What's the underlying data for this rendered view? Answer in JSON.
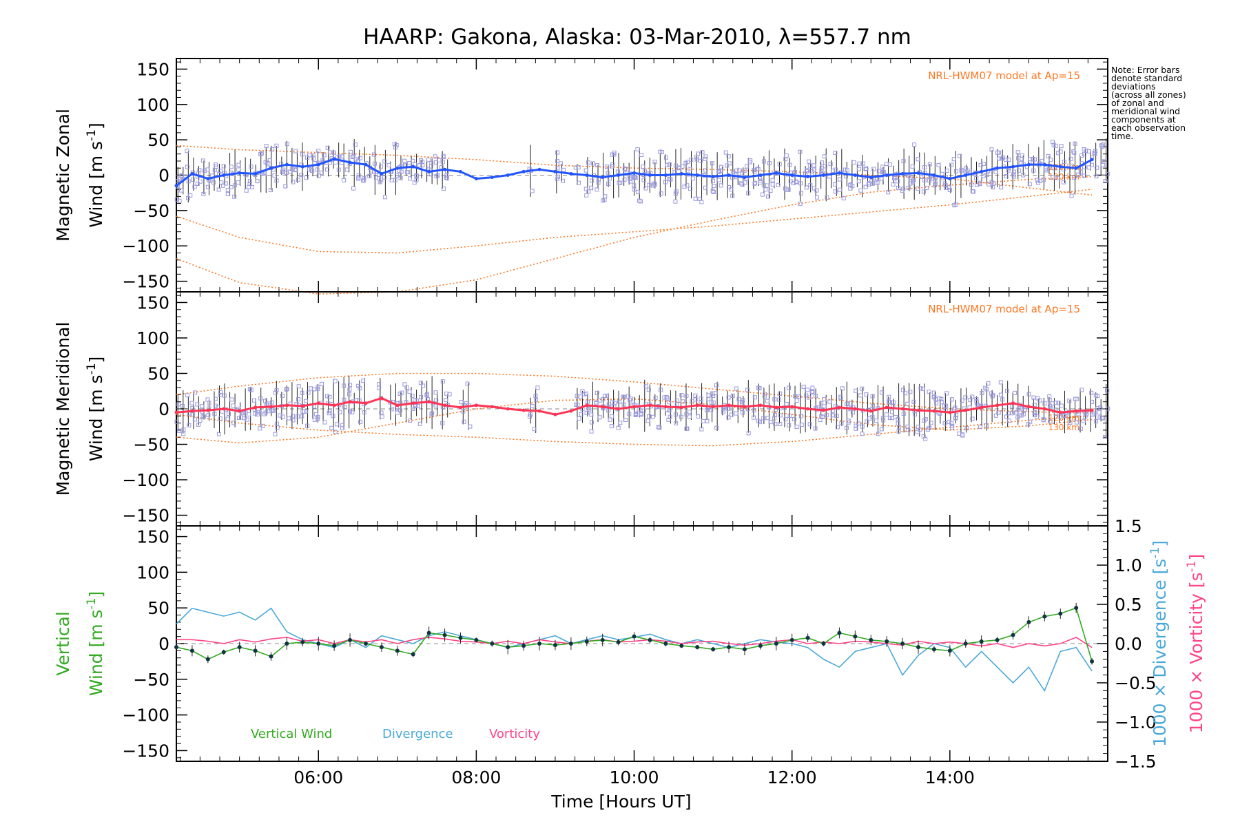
{
  "figure": {
    "title": "HAARP: Gakona,  Alaska: 03-Mar-2010, λ=557.7 nm",
    "note_lines": [
      "Note: Error bars",
      "denote standard",
      "deviations",
      "(across all zones)",
      "of zonal and",
      "meridional wind",
      "components at",
      "each observation",
      "time."
    ],
    "colors": {
      "zonal": "#2255ff",
      "meridional": "#ff3355",
      "vertical": "#33aa22",
      "divergence": "#4aa8d8",
      "vorticity": "#ff4488",
      "model": "#ff7722",
      "zone_marks": "#9999dd",
      "error_bars": "#000000"
    }
  },
  "chart_data": [
    {
      "type": "line",
      "title": "",
      "ylabel": "Magnetic Zonal Wind [m s-1]",
      "ylabel_lines": [
        "Magnetic Zonal",
        "Wind [m s",
        "-1",
        "]"
      ],
      "xlabel": "",
      "xlim": [
        4.2,
        16.0
      ],
      "ylim": [
        -165,
        165
      ],
      "yticks": [
        -150,
        -100,
        -50,
        0,
        50,
        100,
        150
      ],
      "ytick_labels": [
        "−150",
        "−100",
        "−50",
        "0",
        "50",
        "100",
        "150"
      ],
      "annotation": "NRL-HWM07 model at Ap=15",
      "model_labels": [
        "120 km",
        "130 km"
      ],
      "series": [
        {
          "x": [
            4.2,
            4.4,
            4.6,
            4.8,
            5.0,
            5.2,
            5.4,
            5.6,
            5.8,
            6.0,
            6.2,
            6.4,
            6.6,
            6.8,
            7.0,
            7.2,
            7.4,
            7.6,
            7.8,
            8.0,
            8.2,
            8.4,
            8.6,
            8.8,
            9.0,
            9.2,
            9.4,
            9.6,
            9.8,
            10.0,
            10.2,
            10.4,
            10.6,
            10.8,
            11.0,
            11.2,
            11.4,
            11.6,
            11.8,
            12.0,
            12.2,
            12.4,
            12.6,
            12.8,
            13.0,
            13.2,
            13.4,
            13.6,
            13.8,
            14.0,
            14.2,
            14.4,
            14.6,
            14.8,
            15.0,
            15.2,
            15.4,
            15.6,
            15.8
          ],
          "y": [
            -15,
            2,
            -5,
            0,
            3,
            2,
            10,
            15,
            12,
            15,
            23,
            18,
            15,
            2,
            10,
            12,
            5,
            8,
            5,
            -5,
            -3,
            0,
            5,
            8,
            5,
            2,
            0,
            -3,
            0,
            3,
            0,
            0,
            2,
            0,
            -2,
            0,
            -3,
            0,
            3,
            0,
            -2,
            0,
            3,
            0,
            -3,
            0,
            2,
            3,
            0,
            -5,
            0,
            5,
            10,
            12,
            15,
            15,
            12,
            10,
            22
          ]
        }
      ],
      "model_curves": [
        {
          "x": [
            4.2,
            5.0,
            6.0,
            7.0,
            8.0,
            9.0,
            10.0,
            11.0,
            12.0,
            13.0,
            14.0,
            15.0,
            15.8
          ],
          "y": [
            42,
            36,
            32,
            28,
            22,
            14,
            10,
            8,
            5,
            0,
            -5,
            -18,
            -28
          ]
        },
        {
          "x": [
            4.2,
            5.0,
            6.0,
            7.0,
            8.0,
            9.0,
            10.0,
            11.0,
            12.0,
            13.0,
            14.0,
            15.0,
            15.8
          ],
          "y": [
            -58,
            -88,
            -108,
            -110,
            -100,
            -88,
            -80,
            -72,
            -62,
            -52,
            -42,
            -30,
            -20
          ]
        },
        {
          "x": [
            4.2,
            5.0,
            6.0,
            7.0,
            8.0,
            9.0,
            10.0,
            11.0,
            12.0,
            13.0,
            14.0,
            15.0,
            15.8
          ],
          "y": [
            -118,
            -152,
            -168,
            -165,
            -148,
            -118,
            -88,
            -64,
            -42,
            -24,
            -14,
            -6,
            -2
          ]
        }
      ]
    },
    {
      "type": "line",
      "title": "",
      "ylabel": "Magnetic Meridional Wind [m s-1]",
      "ylabel_lines": [
        "Magnetic Meridional",
        "Wind [m s",
        "-1",
        "]"
      ],
      "xlabel": "",
      "xlim": [
        4.2,
        16.0
      ],
      "ylim": [
        -165,
        165
      ],
      "yticks": [
        -150,
        -100,
        -50,
        0,
        50,
        100,
        150
      ],
      "ytick_labels": [
        "−150",
        "−100",
        "−50",
        "0",
        "50",
        "100",
        "150"
      ],
      "annotation": "NRL-HWM07 model at Ap=15",
      "model_labels": [
        "120 km",
        "130 km"
      ],
      "series": [
        {
          "x": [
            4.2,
            4.4,
            4.6,
            4.8,
            5.0,
            5.2,
            5.4,
            5.6,
            5.8,
            6.0,
            6.2,
            6.4,
            6.6,
            6.8,
            7.0,
            7.2,
            7.4,
            7.6,
            7.8,
            8.0,
            8.2,
            8.4,
            8.6,
            8.8,
            9.0,
            9.2,
            9.4,
            9.6,
            9.8,
            10.0,
            10.2,
            10.4,
            10.6,
            10.8,
            11.0,
            11.2,
            11.4,
            11.6,
            11.8,
            12.0,
            12.2,
            12.4,
            12.6,
            12.8,
            13.0,
            13.2,
            13.4,
            13.6,
            13.8,
            14.0,
            14.2,
            14.4,
            14.6,
            14.8,
            15.0,
            15.2,
            15.4,
            15.6,
            15.8
          ],
          "y": [
            -5,
            -3,
            -2,
            0,
            -3,
            2,
            3,
            5,
            4,
            8,
            5,
            10,
            8,
            15,
            5,
            8,
            10,
            5,
            2,
            5,
            3,
            0,
            -2,
            -3,
            -8,
            -3,
            5,
            3,
            0,
            3,
            5,
            3,
            2,
            5,
            3,
            5,
            3,
            5,
            2,
            3,
            0,
            -2,
            2,
            0,
            -3,
            2,
            0,
            -2,
            -3,
            -5,
            -2,
            2,
            5,
            8,
            3,
            0,
            -5,
            -3,
            -2
          ]
        }
      ],
      "model_curves": [
        {
          "x": [
            4.2,
            5.0,
            6.0,
            7.0,
            8.0,
            9.0,
            10.0,
            11.0,
            12.0,
            13.0,
            14.0,
            15.0,
            15.8
          ],
          "y": [
            20,
            32,
            44,
            50,
            50,
            46,
            38,
            28,
            18,
            8,
            0,
            -4,
            -6
          ]
        },
        {
          "x": [
            4.2,
            5.0,
            6.0,
            7.0,
            8.0,
            9.0,
            10.0,
            11.0,
            12.0,
            13.0,
            14.0,
            15.0,
            15.8
          ],
          "y": [
            -40,
            -48,
            -40,
            -20,
            0,
            12,
            14,
            6,
            -8,
            -22,
            -30,
            -24,
            -15
          ]
        },
        {
          "x": [
            4.2,
            5.0,
            6.0,
            7.0,
            8.0,
            9.0,
            10.0,
            11.0,
            12.0,
            13.0,
            14.0,
            15.0,
            15.8
          ],
          "y": [
            -8,
            -20,
            -30,
            -36,
            -40,
            -46,
            -50,
            -52,
            -46,
            -36,
            -26,
            -16,
            -10
          ]
        }
      ]
    },
    {
      "type": "line",
      "title": "",
      "ylabel": "Vertical Wind [m s-1]",
      "ylabel_lines": [
        "Vertical",
        "Wind [m s",
        "-1",
        "]"
      ],
      "y2label": "1000 × Divergence [s-1]",
      "y2label_parts": [
        "1000 × Divergence [s",
        "-1",
        "]"
      ],
      "y3label": "1000 × Vorticity [s-1]",
      "y3label_parts": [
        "1000 × Vorticity [s",
        "-1",
        "]"
      ],
      "xlabel": "Time [Hours UT]",
      "xlim": [
        4.2,
        16.0
      ],
      "ylim": [
        -165,
        165
      ],
      "y2lim": [
        -1.5,
        1.5
      ],
      "yticks": [
        -150,
        -100,
        -50,
        0,
        50,
        100,
        150
      ],
      "ytick_labels": [
        "−150",
        "−100",
        "−50",
        "0",
        "50",
        "100",
        "150"
      ],
      "y2ticks": [
        -1.5,
        -1.0,
        -0.5,
        0.0,
        0.5,
        1.0,
        1.5
      ],
      "y2tick_labels": [
        "−1.5",
        "−1.0",
        "−0.5",
        "0.0",
        "0.5",
        "1.0",
        "1.5"
      ],
      "xticks": [
        6,
        8,
        10,
        12,
        14
      ],
      "xtick_labels": [
        "06:00",
        "08:00",
        "10:00",
        "12:00",
        "14:00"
      ],
      "legend": [
        "Vertical Wind",
        "Divergence",
        "Vorticity"
      ],
      "series": [
        {
          "name": "Vertical Wind",
          "x": [
            4.2,
            4.4,
            4.6,
            4.8,
            5.0,
            5.2,
            5.4,
            5.6,
            5.8,
            6.0,
            6.2,
            6.4,
            6.6,
            6.8,
            7.0,
            7.2,
            7.4,
            7.6,
            7.8,
            8.0,
            8.2,
            8.4,
            8.6,
            8.8,
            9.0,
            9.2,
            9.4,
            9.6,
            9.8,
            10.0,
            10.2,
            10.4,
            10.6,
            10.8,
            11.0,
            11.2,
            11.4,
            11.6,
            11.8,
            12.0,
            12.2,
            12.4,
            12.6,
            12.8,
            13.0,
            13.2,
            13.4,
            13.6,
            13.8,
            14.0,
            14.2,
            14.4,
            14.6,
            14.8,
            15.0,
            15.2,
            15.4,
            15.6,
            15.8
          ],
          "y": [
            -5,
            -10,
            -22,
            -12,
            -5,
            -10,
            -18,
            0,
            2,
            0,
            -3,
            5,
            0,
            -5,
            -10,
            -15,
            15,
            12,
            8,
            5,
            0,
            -5,
            -3,
            0,
            -2,
            0,
            3,
            5,
            2,
            10,
            5,
            0,
            -3,
            -5,
            -8,
            -5,
            -8,
            -3,
            0,
            5,
            8,
            0,
            15,
            10,
            5,
            3,
            0,
            -5,
            -8,
            -10,
            0,
            3,
            5,
            12,
            30,
            38,
            42,
            50,
            -25
          ]
        },
        {
          "name": "Divergence",
          "x": [
            4.2,
            4.4,
            4.6,
            4.8,
            5.0,
            5.2,
            5.4,
            5.6,
            5.8,
            6.0,
            6.2,
            6.4,
            6.6,
            6.8,
            7.0,
            7.2,
            7.4,
            7.6,
            7.8,
            8.0,
            8.2,
            8.4,
            8.6,
            8.8,
            9.0,
            9.2,
            9.4,
            9.6,
            9.8,
            10.0,
            10.2,
            10.4,
            10.6,
            10.8,
            11.0,
            11.2,
            11.4,
            11.6,
            11.8,
            12.0,
            12.2,
            12.4,
            12.6,
            12.8,
            13.0,
            13.2,
            13.4,
            13.6,
            13.8,
            14.0,
            14.2,
            14.4,
            14.6,
            14.8,
            15.0,
            15.2,
            15.4,
            15.6,
            15.8
          ],
          "y": [
            0.25,
            0.45,
            0.4,
            0.35,
            0.4,
            0.3,
            0.45,
            0.15,
            0.05,
            0.0,
            -0.05,
            0.05,
            -0.05,
            0.1,
            0.05,
            0.0,
            0.1,
            0.15,
            0.1,
            0.05,
            0.0,
            -0.05,
            0.0,
            0.05,
            0.1,
            0.0,
            0.05,
            0.1,
            0.05,
            0.08,
            0.12,
            0.05,
            0.0,
            0.05,
            0.0,
            -0.05,
            0.0,
            0.05,
            0.02,
            0.0,
            -0.05,
            -0.2,
            -0.3,
            -0.1,
            -0.05,
            0.0,
            -0.4,
            -0.15,
            0.0,
            -0.05,
            -0.3,
            -0.1,
            -0.3,
            -0.5,
            -0.3,
            -0.6,
            -0.1,
            -0.05,
            -0.35
          ]
        },
        {
          "name": "Vorticity",
          "x": [
            4.2,
            4.4,
            4.6,
            4.8,
            5.0,
            5.2,
            5.4,
            5.6,
            5.8,
            6.0,
            6.2,
            6.4,
            6.6,
            6.8,
            7.0,
            7.2,
            7.4,
            7.6,
            7.8,
            8.0,
            8.2,
            8.4,
            8.6,
            8.8,
            9.0,
            9.2,
            9.4,
            9.6,
            9.8,
            10.0,
            10.2,
            10.4,
            10.6,
            10.8,
            11.0,
            11.2,
            11.4,
            11.6,
            11.8,
            12.0,
            12.2,
            12.4,
            12.6,
            12.8,
            13.0,
            13.2,
            13.4,
            13.6,
            13.8,
            14.0,
            14.2,
            14.4,
            14.6,
            14.8,
            15.0,
            15.2,
            15.4,
            15.6,
            15.8
          ],
          "y": [
            0.05,
            0.05,
            0.03,
            0.0,
            0.05,
            0.02,
            0.06,
            0.08,
            0.03,
            0.05,
            0.0,
            0.05,
            0.02,
            0.05,
            0.0,
            0.05,
            0.08,
            0.06,
            0.03,
            0.02,
            0.0,
            0.03,
            0.0,
            0.05,
            0.02,
            0.0,
            0.03,
            0.05,
            0.02,
            0.03,
            0.05,
            0.03,
            0.0,
            0.02,
            0.03,
            0.0,
            -0.02,
            0.0,
            0.03,
            0.05,
            0.0,
            0.02,
            0.0,
            0.03,
            0.02,
            0.0,
            -0.02,
            0.03,
            0.0,
            0.02,
            0.0,
            -0.03,
            0.0,
            -0.05,
            0.0,
            -0.03,
            0.0,
            0.08,
            -0.05
          ]
        }
      ]
    }
  ]
}
